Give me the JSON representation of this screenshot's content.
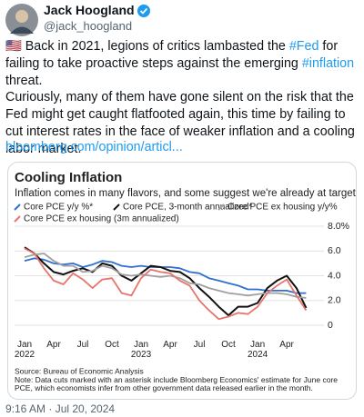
{
  "tweet": {
    "author": {
      "name": "Jack Hoogland",
      "handle": "@jack_hoogland"
    },
    "paragraphs": [
      [
        "🇺🇸 Back in 2021, legions of critics lambasted the ",
        "#Fed",
        " for failing to take proactive steps against the emerging ",
        "#inflation",
        " threat."
      ],
      [
        "Curiously, many of them have gone silent on the risk that the Fed might get caught flatfooted again, this time by failing to cut interest rates in the face of weaker inflation and a cooling labor market."
      ]
    ],
    "link": "bloomberg.com/opinion/articl...",
    "timestamp": "9:16 AM · Jul 20, 2024"
  },
  "chart_data": {
    "type": "line",
    "title": "Cooling Inflation",
    "subtitle": "Inflation comes in many flavors, and some suggest we're already at target",
    "source": "Source: Bureau of Economic Analysis",
    "note": "Note: Data cuts marked with an asterisk include Bloomberg Economics' estimate for June core PCE, which economists infer from other government data released earlier in the month.",
    "categories": [
      "Jan\n2022",
      null,
      null,
      "Apr",
      null,
      null,
      "Jul",
      null,
      null,
      "Oct",
      null,
      null,
      "Jan\n2023",
      null,
      null,
      "Apr",
      null,
      null,
      "Jul",
      null,
      null,
      "Oct",
      null,
      null,
      "Jan\n2024",
      null,
      null,
      "Apr",
      null,
      null
    ],
    "series": [
      {
        "name": "Core PCE y/y %*",
        "color": "#2f6fd0",
        "values": [
          5.2,
          5.4,
          5.3,
          5.0,
          4.9,
          5.0,
          4.7,
          4.9,
          5.2,
          5.1,
          4.8,
          4.7,
          4.8,
          4.7,
          4.7,
          4.7,
          4.6,
          4.3,
          4.2,
          3.8,
          3.6,
          3.4,
          3.2,
          2.9,
          2.9,
          2.8,
          2.8,
          2.8,
          2.6,
          2.6
        ]
      },
      {
        "name": "Core PCE, 3-month annualized*",
        "color": "#111111",
        "values": [
          6.3,
          5.8,
          5.0,
          4.3,
          4.1,
          4.4,
          4.6,
          4.3,
          5.0,
          4.8,
          4.0,
          3.6,
          4.2,
          4.8,
          4.7,
          4.4,
          4.3,
          3.8,
          3.0,
          2.3,
          1.5,
          0.8,
          1.5,
          1.5,
          1.8,
          3.0,
          3.6,
          4.0,
          3.0,
          1.4
        ]
      },
      {
        "name": "Core PCE ex housing y/y%",
        "color": "#a0a0a0",
        "values": [
          5.5,
          5.7,
          5.8,
          5.2,
          4.8,
          4.8,
          4.3,
          4.4,
          4.8,
          4.6,
          4.1,
          4.0,
          4.1,
          4.0,
          3.9,
          4.0,
          3.8,
          3.4,
          3.3,
          3.0,
          2.8,
          2.6,
          2.5,
          2.4,
          2.5,
          2.6,
          2.6,
          2.5,
          2.3,
          2.2
        ]
      },
      {
        "name": "Core PCE ex housing (3m annualized)",
        "color": "#e8746c",
        "values": [
          6.2,
          5.8,
          4.6,
          3.6,
          3.3,
          4.2,
          3.7,
          3.0,
          3.7,
          3.8,
          2.6,
          2.4,
          3.8,
          4.5,
          4.3,
          4.2,
          3.6,
          3.2,
          2.0,
          1.2,
          0.5,
          0.7,
          1.0,
          0.9,
          1.5,
          2.6,
          3.2,
          3.7,
          2.4,
          1.2
        ]
      }
    ],
    "ylim": [
      0,
      8
    ],
    "yticks": [
      0,
      {
        "value": 2,
        "label": "2.0"
      },
      {
        "value": 4,
        "label": "4.0"
      },
      {
        "value": 6,
        "label": "6.0"
      },
      {
        "value": 8,
        "label": "8.0%"
      }
    ],
    "grid": true
  }
}
